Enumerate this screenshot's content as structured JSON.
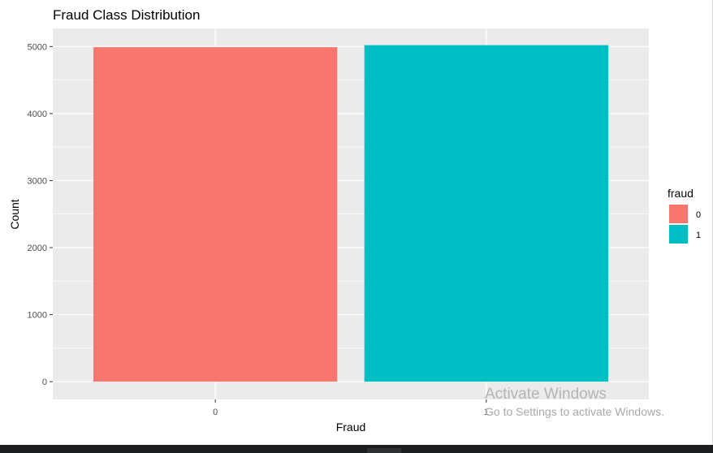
{
  "chart_data": {
    "type": "bar",
    "title": "Fraud Class Distribution",
    "xlabel": "Fraud",
    "ylabel": "Count",
    "categories": [
      "0",
      "1"
    ],
    "values": [
      4990,
      5020
    ],
    "ylim": [
      -265,
      5270
    ],
    "yticks": [
      0,
      1000,
      2000,
      3000,
      4000,
      5000
    ],
    "colors": [
      "#F8766D",
      "#00BFC4"
    ],
    "panel_background": "#EBEBEB",
    "grid": true,
    "legend": {
      "title": "fraud",
      "placement": "right",
      "entries": [
        "0",
        "1"
      ]
    }
  },
  "overlay": {
    "watermark_title": "Activate Windows",
    "watermark_subtitle": "Go to Settings to activate Windows."
  }
}
